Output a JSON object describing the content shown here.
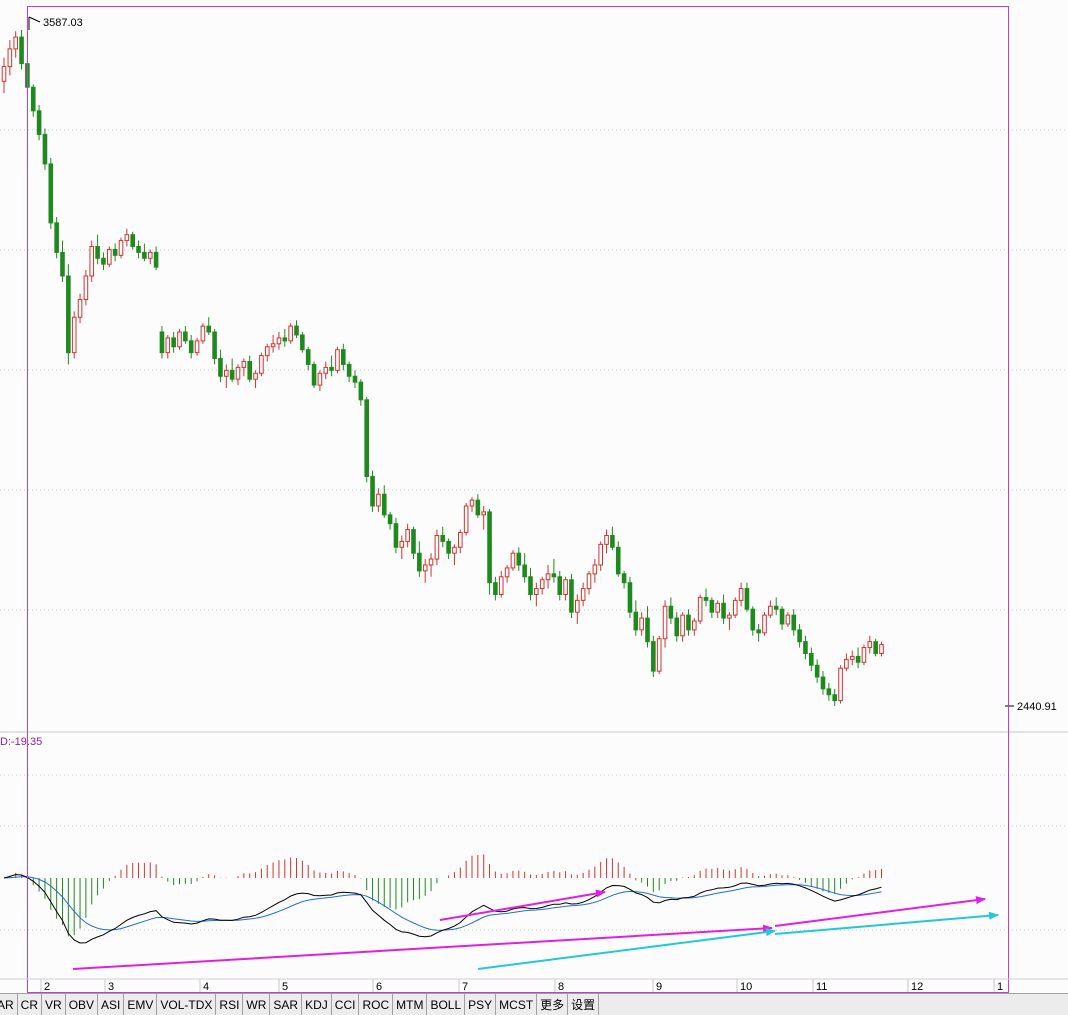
{
  "chart_data": [
    {
      "type": "candlestick",
      "annotations": {
        "high_label": "3587.03",
        "low_label": "2440.91"
      },
      "ylim": [
        2400,
        3600
      ],
      "up_color": "#d0352f",
      "down_color": "#1e8a1e",
      "month_labels": [
        "2",
        "3",
        "4",
        "5",
        "6",
        "7",
        "8",
        "9",
        "10",
        "11",
        "12",
        "1"
      ],
      "ohlc": [
        [
          3500,
          3540,
          3480,
          3525
        ],
        [
          3525,
          3570,
          3510,
          3555
        ],
        [
          3555,
          3585,
          3540,
          3575
        ],
        [
          3575,
          3587.03,
          3520,
          3530
        ],
        [
          3530,
          3535,
          3480,
          3490
        ],
        [
          3490,
          3495,
          3440,
          3450
        ],
        [
          3450,
          3460,
          3400,
          3410
        ],
        [
          3410,
          3420,
          3350,
          3360
        ],
        [
          3360,
          3370,
          3250,
          3260
        ],
        [
          3260,
          3270,
          3200,
          3210
        ],
        [
          3210,
          3230,
          3160,
          3170
        ],
        [
          3170,
          3190,
          3020,
          3040
        ],
        [
          3040,
          3110,
          3030,
          3100
        ],
        [
          3100,
          3140,
          3090,
          3130
        ],
        [
          3130,
          3180,
          3120,
          3170
        ],
        [
          3170,
          3230,
          3160,
          3220
        ],
        [
          3220,
          3240,
          3190,
          3200
        ],
        [
          3200,
          3210,
          3180,
          3190
        ],
        [
          3190,
          3220,
          3185,
          3215
        ],
        [
          3215,
          3225,
          3195,
          3205
        ],
        [
          3205,
          3235,
          3200,
          3230
        ],
        [
          3230,
          3250,
          3220,
          3240
        ],
        [
          3240,
          3245,
          3215,
          3220
        ],
        [
          3220,
          3230,
          3200,
          3210
        ],
        [
          3210,
          3225,
          3195,
          3200
        ],
        [
          3200,
          3215,
          3190,
          3210
        ],
        [
          3210,
          3220,
          3180,
          3185
        ],
        [
          3075,
          3085,
          3030,
          3040
        ],
        [
          3040,
          3070,
          3030,
          3065
        ],
        [
          3065,
          3075,
          3040,
          3050
        ],
        [
          3050,
          3080,
          3045,
          3075
        ],
        [
          3075,
          3085,
          3055,
          3060
        ],
        [
          3060,
          3070,
          3030,
          3040
        ],
        [
          3040,
          3065,
          3035,
          3060
        ],
        [
          3060,
          3090,
          3055,
          3085
        ],
        [
          3085,
          3100,
          3070,
          3075
        ],
        [
          3075,
          3080,
          3020,
          3030
        ],
        [
          3030,
          3045,
          2990,
          3000
        ],
        [
          3000,
          3020,
          2980,
          3010
        ],
        [
          3010,
          3030,
          2990,
          2995
        ],
        [
          2995,
          3020,
          2985,
          3015
        ],
        [
          3015,
          3030,
          3000,
          3025
        ],
        [
          3025,
          3035,
          2990,
          2995
        ],
        [
          2995,
          3010,
          2980,
          3005
        ],
        [
          3005,
          3040,
          3000,
          3035
        ],
        [
          3035,
          3055,
          3025,
          3050
        ],
        [
          3050,
          3070,
          3040,
          3055
        ],
        [
          3055,
          3075,
          3045,
          3065
        ],
        [
          3065,
          3080,
          3050,
          3060
        ],
        [
          3060,
          3090,
          3055,
          3085
        ],
        [
          3085,
          3095,
          3065,
          3070
        ],
        [
          3070,
          3075,
          3040,
          3045
        ],
        [
          3045,
          3050,
          3010,
          3020
        ],
        [
          3020,
          3025,
          2980,
          2985
        ],
        [
          2985,
          3010,
          2975,
          3005
        ],
        [
          3005,
          3025,
          2995,
          3015
        ],
        [
          3015,
          3035,
          3000,
          3010
        ],
        [
          3010,
          3050,
          3005,
          3045
        ],
        [
          3045,
          3055,
          3010,
          3020
        ],
        [
          3020,
          3025,
          2990,
          3000
        ],
        [
          3000,
          3010,
          2980,
          2990
        ],
        [
          2990,
          2995,
          2950,
          2960
        ],
        [
          2960,
          2965,
          2820,
          2830
        ],
        [
          2830,
          2840,
          2770,
          2780
        ],
        [
          2780,
          2810,
          2770,
          2800
        ],
        [
          2800,
          2815,
          2760,
          2765
        ],
        [
          2765,
          2770,
          2740,
          2750
        ],
        [
          2750,
          2760,
          2700,
          2710
        ],
        [
          2710,
          2730,
          2690,
          2720
        ],
        [
          2720,
          2750,
          2710,
          2740
        ],
        [
          2740,
          2745,
          2690,
          2700
        ],
        [
          2700,
          2720,
          2660,
          2670
        ],
        [
          2670,
          2690,
          2650,
          2680
        ],
        [
          2680,
          2700,
          2660,
          2690
        ],
        [
          2690,
          2740,
          2680,
          2730
        ],
        [
          2730,
          2745,
          2710,
          2720
        ],
        [
          2720,
          2725,
          2690,
          2700
        ],
        [
          2700,
          2715,
          2680,
          2710
        ],
        [
          2710,
          2740,
          2700,
          2735
        ],
        [
          2735,
          2785,
          2730,
          2780
        ],
        [
          2780,
          2795,
          2770,
          2790
        ],
        [
          2790,
          2800,
          2760,
          2765
        ],
        [
          2765,
          2780,
          2740,
          2770
        ],
        [
          2770,
          2775,
          2630,
          2650
        ],
        [
          2650,
          2660,
          2620,
          2630
        ],
        [
          2630,
          2670,
          2625,
          2660
        ],
        [
          2660,
          2680,
          2650,
          2675
        ],
        [
          2675,
          2705,
          2670,
          2700
        ],
        [
          2700,
          2710,
          2670,
          2680
        ],
        [
          2680,
          2700,
          2650,
          2660
        ],
        [
          2660,
          2675,
          2620,
          2630
        ],
        [
          2630,
          2650,
          2610,
          2640
        ],
        [
          2640,
          2660,
          2630,
          2655
        ],
        [
          2655,
          2680,
          2640,
          2665
        ],
        [
          2665,
          2690,
          2650,
          2660
        ],
        [
          2660,
          2670,
          2620,
          2630
        ],
        [
          2630,
          2660,
          2620,
          2655
        ],
        [
          2655,
          2665,
          2590,
          2600
        ],
        [
          2600,
          2630,
          2580,
          2620
        ],
        [
          2620,
          2650,
          2610,
          2640
        ],
        [
          2640,
          2670,
          2630,
          2665
        ],
        [
          2665,
          2690,
          2650,
          2680
        ],
        [
          2680,
          2720,
          2670,
          2715
        ],
        [
          2715,
          2740,
          2700,
          2730
        ],
        [
          2730,
          2745,
          2705,
          2710
        ],
        [
          2710,
          2720,
          2660,
          2665
        ],
        [
          2665,
          2670,
          2640,
          2650
        ],
        [
          2650,
          2660,
          2590,
          2600
        ],
        [
          2600,
          2620,
          2560,
          2570
        ],
        [
          2570,
          2600,
          2560,
          2590
        ],
        [
          2590,
          2610,
          2540,
          2550
        ],
        [
          2550,
          2560,
          2490,
          2500
        ],
        [
          2500,
          2560,
          2495,
          2555
        ],
        [
          2555,
          2620,
          2540,
          2610
        ],
        [
          2610,
          2625,
          2580,
          2590
        ],
        [
          2590,
          2600,
          2550,
          2560
        ],
        [
          2560,
          2600,
          2550,
          2595
        ],
        [
          2595,
          2605,
          2560,
          2570
        ],
        [
          2570,
          2590,
          2560,
          2585
        ],
        [
          2585,
          2630,
          2580,
          2625
        ],
        [
          2625,
          2640,
          2610,
          2620
        ],
        [
          2620,
          2625,
          2590,
          2600
        ],
        [
          2600,
          2620,
          2590,
          2615
        ],
        [
          2615,
          2630,
          2580,
          2590
        ],
        [
          2590,
          2600,
          2570,
          2595
        ],
        [
          2595,
          2625,
          2590,
          2620
        ],
        [
          2620,
          2650,
          2610,
          2640
        ],
        [
          2640,
          2650,
          2600,
          2605
        ],
        [
          2605,
          2610,
          2560,
          2570
        ],
        [
          2570,
          2580,
          2550,
          2565
        ],
        [
          2565,
          2600,
          2560,
          2595
        ],
        [
          2595,
          2620,
          2590,
          2610
        ],
        [
          2610,
          2625,
          2595,
          2605
        ],
        [
          2605,
          2610,
          2570,
          2580
        ],
        [
          2580,
          2600,
          2575,
          2595
        ],
        [
          2595,
          2605,
          2560,
          2570
        ],
        [
          2570,
          2580,
          2540,
          2550
        ],
        [
          2550,
          2560,
          2520,
          2530
        ],
        [
          2530,
          2540,
          2500,
          2510
        ],
        [
          2510,
          2520,
          2480,
          2490
        ],
        [
          2490,
          2500,
          2460,
          2470
        ],
        [
          2470,
          2480,
          2450,
          2460
        ],
        [
          2460,
          2470,
          2440.91,
          2450
        ],
        [
          2450,
          2510,
          2445,
          2505
        ],
        [
          2505,
          2530,
          2500,
          2520
        ],
        [
          2520,
          2535,
          2510,
          2525
        ],
        [
          2525,
          2540,
          2505,
          2515
        ],
        [
          2515,
          2545,
          2510,
          2540
        ],
        [
          2540,
          2560,
          2530,
          2550
        ],
        [
          2550,
          2555,
          2525,
          2530
        ],
        [
          2530,
          2550,
          2525,
          2545
        ]
      ]
    },
    {
      "type": "macd",
      "label": "D:-19.35",
      "signal_lines": {
        "macd_line": "#000000",
        "signal_line": "#1f6fd0"
      },
      "histogram_colors": {
        "positive": "#d0352f",
        "negative": "#1e8a1e"
      },
      "arrow_colors": {
        "magenta": "#e020e0",
        "cyan": "#20c8d8"
      }
    }
  ],
  "indicator_tabs": [
    "AR",
    "CR",
    "VR",
    "OBV",
    "ASI",
    "EMV",
    "VOL-TDX",
    "RSI",
    "WR",
    "SAR",
    "KDJ",
    "CCI",
    "ROC",
    "MTM",
    "BOLL",
    "PSY",
    "MCST",
    "更多",
    "设置"
  ]
}
